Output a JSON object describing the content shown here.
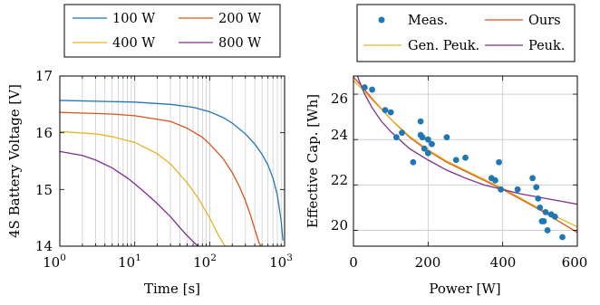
{
  "colors": {
    "blue": "#1f77b4",
    "red": "#d95319",
    "yellow": "#e6b422",
    "purple": "#7e2f8e"
  },
  "chart_data": [
    {
      "type": "line",
      "xlabel": "Time [s]",
      "ylabel": "4S Battery Voltage [V]",
      "xscale": "log",
      "xlim": [
        1,
        1000
      ],
      "ylim": [
        14,
        17
      ],
      "x_ticks": [
        1,
        10,
        100,
        1000
      ],
      "x_tick_labels": [
        "10",
        "10",
        "10",
        "10"
      ],
      "x_tick_exponents": [
        "0",
        "1",
        "2",
        "3"
      ],
      "y_ticks": [
        14,
        15,
        16,
        17
      ],
      "y_tick_labels": [
        "14",
        "15",
        "16",
        "17"
      ],
      "grid": "major and minor vertical lines",
      "legend": {
        "placement": "top, outside",
        "entries": [
          {
            "label": "100 W",
            "color": "#1f77b4"
          },
          {
            "label": "200 W",
            "color": "#d95319"
          },
          {
            "label": "400 W",
            "color": "#e6b422"
          },
          {
            "label": "800 W",
            "color": "#7e2f8e"
          }
        ]
      },
      "series": [
        {
          "name": "100 W",
          "color": "#1f77b4",
          "x": [
            1,
            10,
            30,
            60,
            100,
            150,
            200,
            300,
            400,
            500,
            600,
            700,
            800,
            900,
            950
          ],
          "y": [
            16.57,
            16.54,
            16.5,
            16.45,
            16.37,
            16.27,
            16.17,
            15.98,
            15.8,
            15.62,
            15.43,
            15.2,
            14.9,
            14.45,
            14.1
          ]
        },
        {
          "name": "200 W",
          "color": "#d95319",
          "x": [
            1,
            5,
            10,
            30,
            50,
            80,
            100,
            150,
            200,
            250,
            300,
            350,
            400,
            450,
            480
          ],
          "y": [
            16.36,
            16.33,
            16.3,
            16.2,
            16.08,
            15.92,
            15.8,
            15.55,
            15.3,
            15.05,
            14.8,
            14.55,
            14.3,
            14.08,
            14.0
          ]
        },
        {
          "name": "400 W",
          "color": "#e6b422",
          "x": [
            1,
            3,
            5,
            10,
            20,
            30,
            50,
            70,
            100,
            130,
            160
          ],
          "y": [
            16.02,
            15.98,
            15.93,
            15.83,
            15.63,
            15.45,
            15.12,
            14.85,
            14.5,
            14.2,
            14.0
          ]
        },
        {
          "name": "800 W",
          "color": "#7e2f8e",
          "x": [
            1,
            2,
            3,
            5,
            8,
            10,
            15,
            20,
            30,
            45,
            60,
            70
          ],
          "y": [
            15.67,
            15.6,
            15.52,
            15.38,
            15.2,
            15.1,
            14.9,
            14.75,
            14.52,
            14.25,
            14.08,
            14.0
          ]
        }
      ]
    },
    {
      "type": "scatter",
      "xlabel": "Power [W]",
      "ylabel": "Effective Cap. [Wh]",
      "xlim": [
        0,
        600
      ],
      "ylim": [
        19.3,
        26.8
      ],
      "x_ticks": [
        0,
        200,
        400,
        600
      ],
      "x_tick_labels": [
        "0",
        "200",
        "400",
        "600"
      ],
      "y_ticks": [
        20,
        22,
        24,
        26
      ],
      "y_tick_labels": [
        "20",
        "22",
        "24",
        "26"
      ],
      "grid": "major gridlines on both axes",
      "legend": {
        "placement": "top, outside",
        "entries": [
          {
            "label": "Meas.",
            "color": "#1f77b4",
            "marker": "dot"
          },
          {
            "label": "Ours",
            "color": "#d95319",
            "marker": "line"
          },
          {
            "label": "Gen. Peuk.",
            "color": "#e6b422",
            "marker": "line"
          },
          {
            "label": "Peuk.",
            "color": "#7e2f8e",
            "marker": "line"
          }
        ]
      },
      "points": {
        "name": "Meas.",
        "color": "#1f77b4",
        "x": [
          30,
          50,
          85,
          100,
          115,
          130,
          160,
          180,
          180,
          185,
          190,
          200,
          200,
          210,
          250,
          275,
          300,
          370,
          380,
          390,
          395,
          440,
          480,
          490,
          495,
          500,
          505,
          510,
          515,
          520,
          530,
          540,
          560
        ],
        "y": [
          26.3,
          26.2,
          25.3,
          25.2,
          24.1,
          24.3,
          23.0,
          24.8,
          24.2,
          24.1,
          23.6,
          23.4,
          24.0,
          23.8,
          24.1,
          23.1,
          23.2,
          22.3,
          22.2,
          23.0,
          21.8,
          21.8,
          22.3,
          21.9,
          21.4,
          21.0,
          20.4,
          20.4,
          20.8,
          20.0,
          20.7,
          20.6,
          19.7
        ]
      },
      "series": [
        {
          "name": "Ours",
          "color": "#d95319",
          "x": [
            0,
            25,
            50,
            100,
            150,
            200,
            250,
            300,
            350,
            400,
            450,
            500,
            550,
            600
          ],
          "y": [
            26.75,
            26.3,
            25.8,
            24.9,
            24.1,
            23.5,
            23.0,
            22.6,
            22.2,
            21.8,
            21.35,
            20.9,
            20.4,
            19.9
          ]
        },
        {
          "name": "Gen. Peuk.",
          "color": "#e6b422",
          "x": [
            0,
            25,
            50,
            100,
            150,
            200,
            250,
            300,
            350,
            400,
            450,
            500,
            550,
            600
          ],
          "y": [
            26.6,
            26.2,
            25.75,
            24.9,
            24.15,
            23.55,
            23.05,
            22.65,
            22.25,
            21.85,
            21.4,
            20.95,
            20.55,
            20.15
          ]
        },
        {
          "name": "Peuk.",
          "color": "#7e2f8e",
          "x": [
            5,
            15,
            30,
            50,
            75,
            100,
            150,
            200,
            250,
            300,
            350,
            400,
            450,
            500,
            550,
            600
          ],
          "y": [
            27.1,
            26.6,
            26.0,
            25.4,
            24.8,
            24.35,
            23.6,
            23.1,
            22.65,
            22.3,
            22.0,
            21.8,
            21.6,
            21.45,
            21.3,
            21.15
          ]
        }
      ]
    }
  ]
}
